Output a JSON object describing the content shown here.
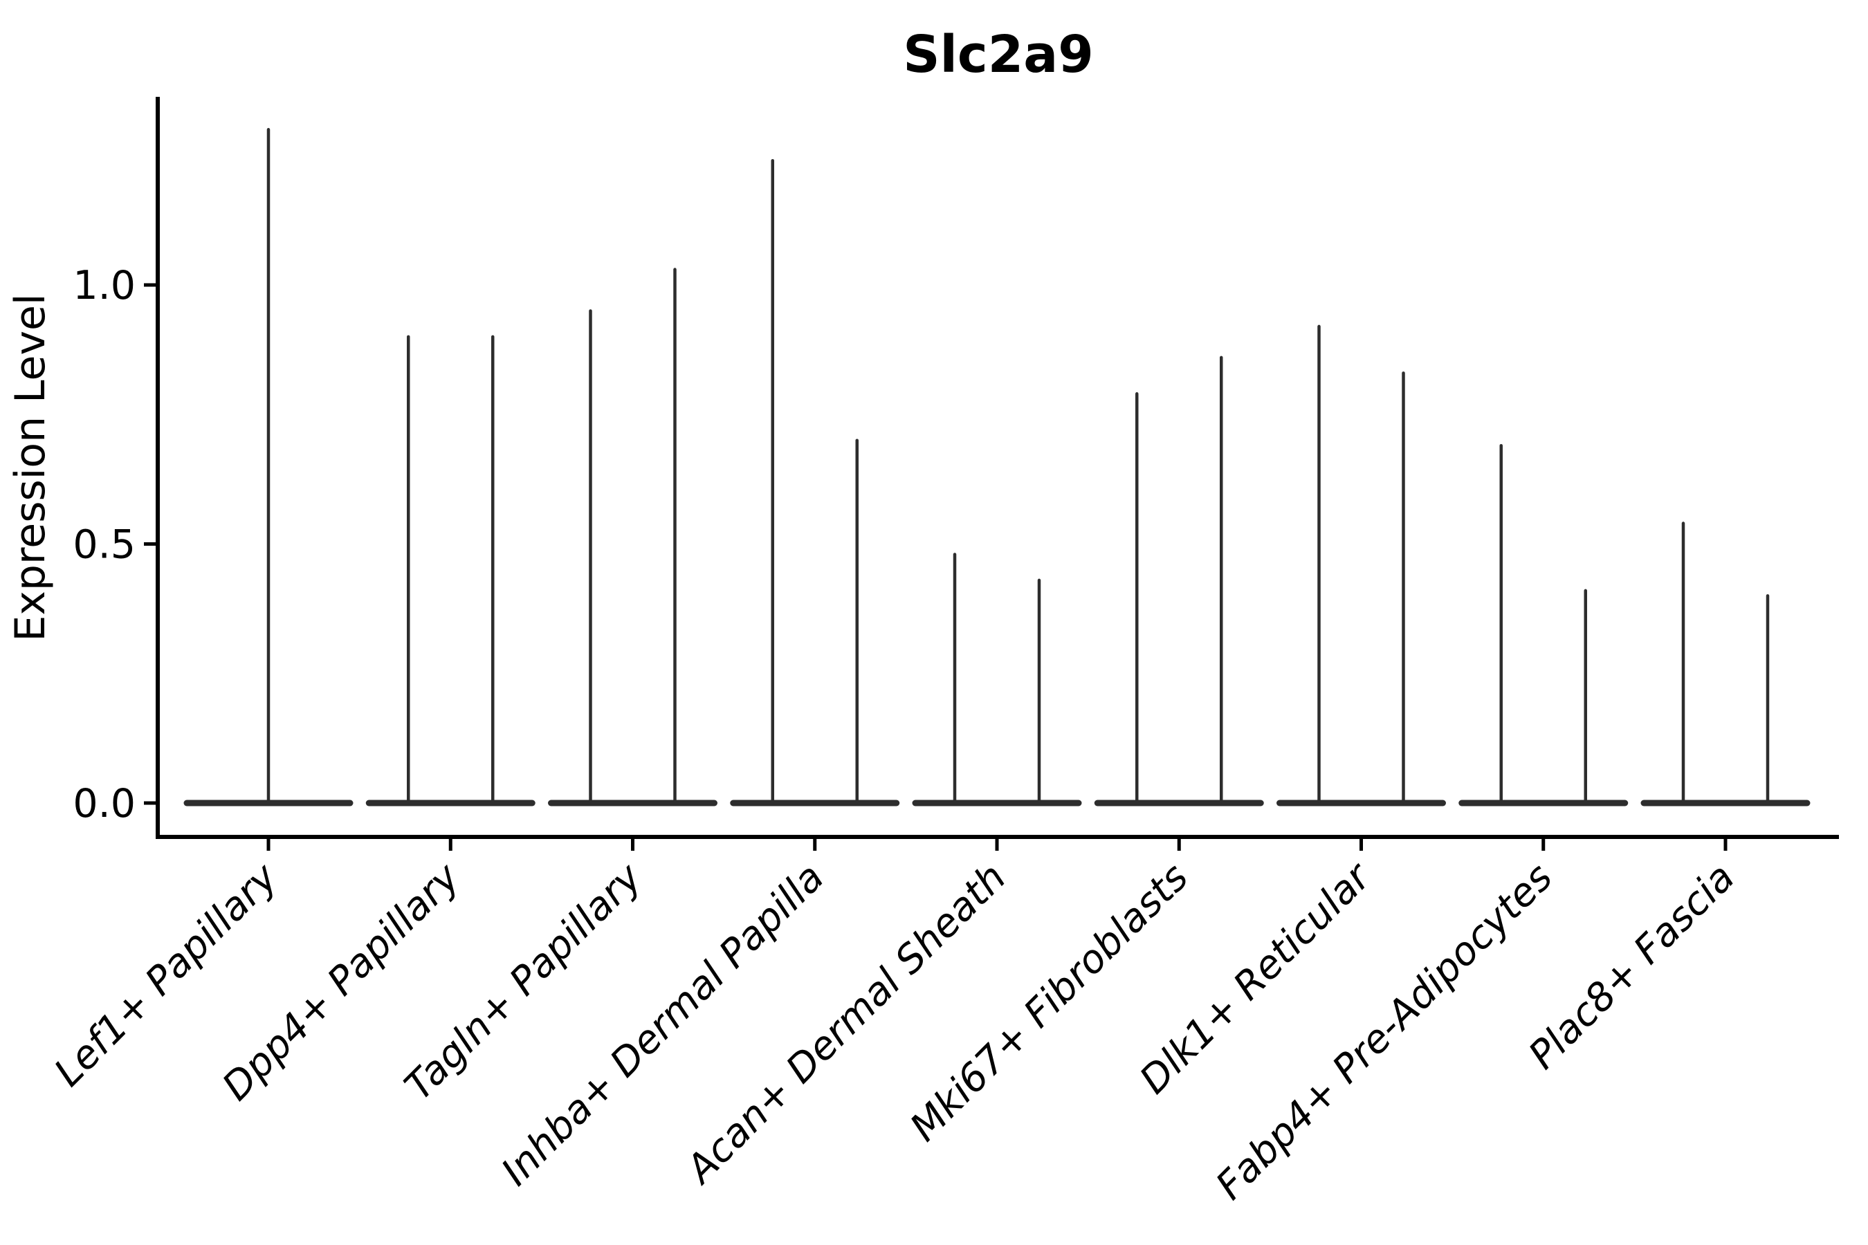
{
  "figure": {
    "kind": "violin-plot",
    "background": "#ffffff"
  },
  "chart_data": {
    "type": "violin",
    "title": "Slc2a9",
    "xlabel": "",
    "ylabel": "Expression Level",
    "grid": false,
    "legend": null,
    "ylim": [
      -0.07,
      1.37
    ],
    "yticks": [
      0.0,
      0.5,
      1.0
    ],
    "ytick_labels": [
      "0.0",
      "0.5",
      "1.0"
    ],
    "categories": [
      "Lef1+ Papillary",
      "Dpp4+ Papillary",
      "Tagln+ Papillary",
      "Inhba+ Dermal Papilla",
      "Acan+ Dermal Sheath",
      "Mki67+ Fibroblasts",
      "Dlk1+ Reticular",
      "Fabp4+ Pre-Adipocytes",
      "Plac8+ Fascia"
    ],
    "violins": [
      {
        "category": "Lef1+ Papillary",
        "max_values": [
          1.3
        ],
        "baseline_value": 0.0
      },
      {
        "category": "Dpp4+ Papillary",
        "max_values": [
          0.9,
          0.9
        ],
        "baseline_value": 0.0
      },
      {
        "category": "Tagln+ Papillary",
        "max_values": [
          0.95,
          1.03
        ],
        "baseline_value": 0.0
      },
      {
        "category": "Inhba+ Dermal Papilla",
        "max_values": [
          1.24,
          0.7
        ],
        "baseline_value": 0.0
      },
      {
        "category": "Acan+ Dermal Sheath",
        "max_values": [
          0.48,
          0.43
        ],
        "baseline_value": 0.0
      },
      {
        "category": "Mki67+ Fibroblasts",
        "max_values": [
          0.79,
          0.86
        ],
        "baseline_value": 0.0
      },
      {
        "category": "Dlk1+ Reticular",
        "max_values": [
          0.92,
          0.83
        ],
        "baseline_value": 0.0
      },
      {
        "category": "Fabp4+ Pre-Adipocytes",
        "max_values": [
          0.69,
          0.41
        ],
        "baseline_value": 0.0
      },
      {
        "category": "Plac8+ Fascia",
        "max_values": [
          0.54,
          0.4
        ],
        "baseline_value": 0.0
      }
    ],
    "colors": {
      "violin_stroke": "#2d2d2d",
      "axis": "#000000",
      "text": "#000000",
      "background": "#ffffff"
    }
  }
}
